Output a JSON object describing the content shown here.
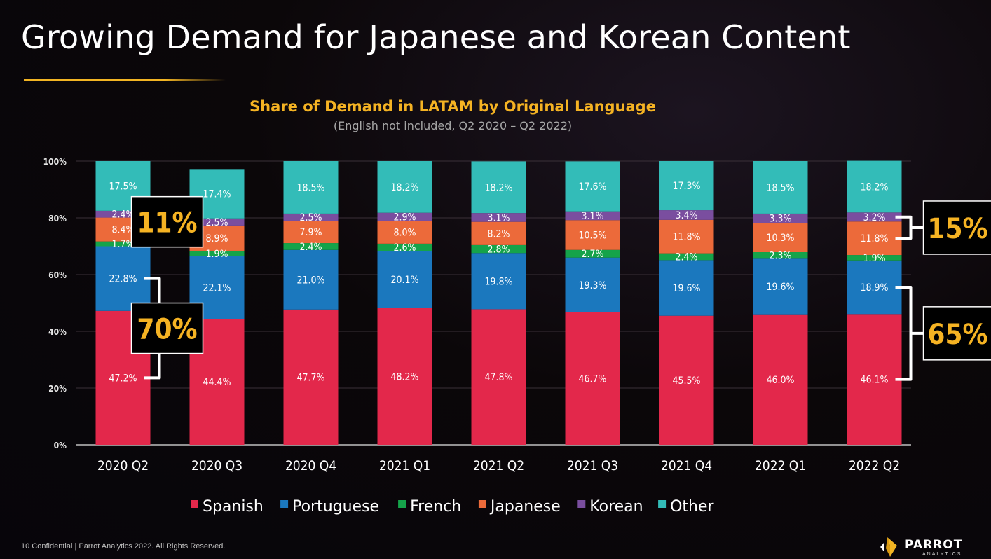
{
  "page": {
    "title": "Growing Demand for Japanese and Korean Content",
    "footer": "10  Confidential  |  Parrot Analytics 2022. All Rights Reserved.",
    "logo_text": "PARROT",
    "logo_sub": "ANALYTICS"
  },
  "chart_data": {
    "type": "bar",
    "stacked": true,
    "title": "Share of Demand in LATAM by Original Language",
    "subtitle": "(English not included, Q2 2020 – Q2 2022)",
    "categories": [
      "2020 Q2",
      "2020 Q3",
      "2020 Q4",
      "2021 Q1",
      "2021 Q2",
      "2021 Q3",
      "2021 Q4",
      "2022 Q1",
      "2022 Q2"
    ],
    "ylim": [
      0,
      100
    ],
    "yticks": [
      "0%",
      "20%",
      "40%",
      "60%",
      "80%",
      "100%"
    ],
    "legend_position": "bottom",
    "series": [
      {
        "name": "Spanish",
        "color": "#e3284b",
        "values": [
          47.2,
          44.4,
          47.7,
          48.2,
          47.8,
          46.7,
          45.5,
          46.0,
          46.1
        ],
        "labels": [
          "47.2%",
          "44.4%",
          "47.7%",
          "48.2%",
          "47.8%",
          "46.7%",
          "45.5%",
          "46.0%",
          "46.1%"
        ]
      },
      {
        "name": "Portuguese",
        "color": "#1b78be",
        "values": [
          22.8,
          22.1,
          21.0,
          20.1,
          19.8,
          19.3,
          19.6,
          19.6,
          18.9
        ],
        "labels": [
          "22.8%",
          "22.1%",
          "21.0%",
          "20.1%",
          "19.8%",
          "19.3%",
          "19.6%",
          "19.6%",
          "18.9%"
        ]
      },
      {
        "name": "French",
        "color": "#15a34a",
        "values": [
          1.7,
          1.9,
          2.4,
          2.6,
          2.8,
          2.7,
          2.4,
          2.3,
          1.9
        ],
        "labels": [
          "1.7%",
          "1.9%",
          "2.4%",
          "2.6%",
          "2.8%",
          "2.7%",
          "2.4%",
          "2.3%",
          "1.9%"
        ]
      },
      {
        "name": "Japanese",
        "color": "#ec6a3a",
        "values": [
          8.4,
          8.9,
          7.9,
          8.0,
          8.2,
          10.5,
          11.8,
          10.3,
          11.8
        ],
        "labels": [
          "8.4%",
          "8.9%",
          "7.9%",
          "8.0%",
          "8.2%",
          "10.5%",
          "11.8%",
          "10.3%",
          "11.8%"
        ]
      },
      {
        "name": "Korean",
        "color": "#7a4e9f",
        "values": [
          2.4,
          2.5,
          2.5,
          2.9,
          3.1,
          3.1,
          3.4,
          3.3,
          3.2
        ],
        "labels": [
          "2.4%",
          "2.5%",
          "2.5%",
          "2.9%",
          "3.1%",
          "3.1%",
          "3.4%",
          "3.3%",
          "3.2%"
        ]
      },
      {
        "name": "Other",
        "color": "#33bcb8",
        "values": [
          17.5,
          17.4,
          18.5,
          18.2,
          18.2,
          17.6,
          17.3,
          18.5,
          18.2
        ],
        "labels": [
          "17.5%",
          "17.4%",
          "18.5%",
          "18.2%",
          "18.2%",
          "17.6%",
          "17.3%",
          "18.5%",
          "18.2%"
        ]
      }
    ],
    "annotations": [
      {
        "text": "11%",
        "category": "2020 Q2",
        "series": [
          "Japanese",
          "Korean"
        ],
        "side": "right"
      },
      {
        "text": "70%",
        "category": "2020 Q2",
        "series": [
          "Spanish",
          "Portuguese"
        ],
        "side": "right"
      },
      {
        "text": "15%",
        "category": "2022 Q2",
        "series": [
          "Japanese",
          "Korean"
        ],
        "side": "right"
      },
      {
        "text": "65%",
        "category": "2022 Q2",
        "series": [
          "Spanish",
          "Portuguese"
        ],
        "side": "right"
      }
    ]
  }
}
